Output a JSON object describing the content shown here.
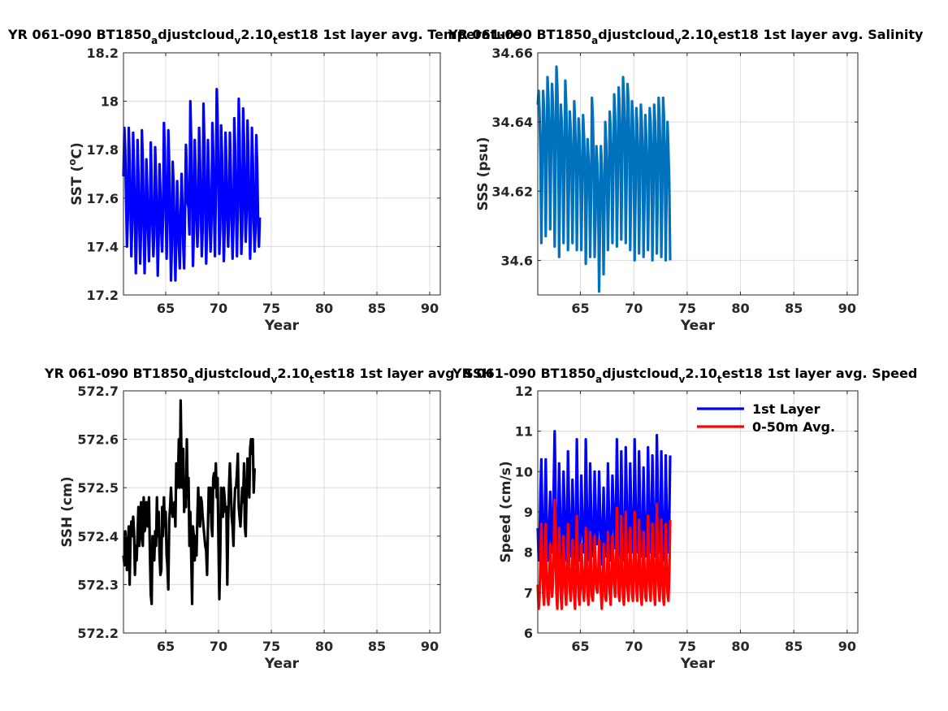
{
  "chart_data": [
    {
      "type": "line",
      "title": "YR 061-090 BT1850_adjustcloud_v2.10_test18 1st layer avg. Temperature",
      "title_parts": [
        "YR 061-090 BT1850",
        "a",
        "djustcloud",
        "v",
        "2.10",
        "t",
        "est18 1st layer avg. Temperature"
      ],
      "xlabel": "Year",
      "ylabel": "SST (",
      "ylabel_sup": "o",
      "ylabel_tail": "C)",
      "xlim": [
        61,
        91
      ],
      "ylim": [
        17.2,
        18.2
      ],
      "xticks": [
        65,
        70,
        75,
        80,
        85,
        90
      ],
      "xtick_labels": [
        "65",
        "70",
        "75",
        "80",
        "85",
        "90"
      ],
      "yticks": [
        17.2,
        17.4,
        17.6,
        17.8,
        18.0,
        18.2
      ],
      "ytick_labels": [
        "17.2",
        "17.4",
        "17.6",
        "17.8",
        "18",
        "18.2"
      ],
      "grid": true,
      "series": [
        {
          "color": "#0000ff",
          "start": 61.0,
          "step": 0.0833,
          "values": [
            17.69,
            17.89,
            17.79,
            17.6,
            17.4,
            17.52,
            17.89,
            17.76,
            17.55,
            17.36,
            17.5,
            17.87,
            17.73,
            17.51,
            17.29,
            17.45,
            17.84,
            17.7,
            17.49,
            17.33,
            17.48,
            17.88,
            17.75,
            17.5,
            17.29,
            17.47,
            17.76,
            17.65,
            17.47,
            17.34,
            17.5,
            17.83,
            17.67,
            17.48,
            17.36,
            17.45,
            17.81,
            17.68,
            17.5,
            17.28,
            17.44,
            17.74,
            17.62,
            17.46,
            17.38,
            17.52,
            17.91,
            17.8,
            17.56,
            17.35,
            17.5,
            17.88,
            17.74,
            17.5,
            17.26,
            17.41,
            17.75,
            17.65,
            17.46,
            17.26,
            17.43,
            17.67,
            17.55,
            17.41,
            17.31,
            17.52,
            17.7,
            17.57,
            17.4,
            17.31,
            17.55,
            17.82,
            17.7,
            17.58,
            17.56,
            17.45,
            18.0,
            17.83,
            17.6,
            17.32,
            17.45,
            17.84,
            17.72,
            17.52,
            17.4,
            17.49,
            17.89,
            17.75,
            17.55,
            17.36,
            17.47,
            17.99,
            17.82,
            17.58,
            17.33,
            17.47,
            17.84,
            17.7,
            17.52,
            17.38,
            17.5,
            17.91,
            17.79,
            17.55,
            17.36,
            17.62,
            18.05,
            17.92,
            17.65,
            17.37,
            17.48,
            17.9,
            17.78,
            17.54,
            17.34,
            17.46,
            17.87,
            17.75,
            17.52,
            17.4,
            17.52,
            17.87,
            17.71,
            17.51,
            17.35,
            17.5,
            17.93,
            17.8,
            17.56,
            17.36,
            17.55,
            18.01,
            17.86,
            17.6,
            17.37,
            17.48,
            17.97,
            17.84,
            17.58,
            17.42,
            17.55,
            17.92,
            17.77,
            17.53,
            17.35,
            17.5,
            17.89,
            17.76,
            17.52,
            17.38,
            17.46,
            17.86,
            17.74,
            17.5,
            17.4,
            17.52
          ]
        }
      ]
    },
    {
      "type": "line",
      "title": "YR 061-090 BT1850_adjustcloud_v2.10_test18 1st layer avg. Salinity",
      "title_parts": [
        "YR 061-090 BT1850",
        "a",
        "djustcloud",
        "v",
        "2.10",
        "t",
        "est18 1st layer avg. Salinity"
      ],
      "xlabel": "Year",
      "ylabel": "SSS (psu)",
      "xlim": [
        61,
        91
      ],
      "ylim": [
        34.59,
        34.66
      ],
      "xticks": [
        65,
        70,
        75,
        80,
        85,
        90
      ],
      "xtick_labels": [
        "65",
        "70",
        "75",
        "80",
        "85",
        "90"
      ],
      "yticks": [
        34.6,
        34.62,
        34.64,
        34.66
      ],
      "ytick_labels": [
        "34.6",
        "34.62",
        "34.64",
        "34.66"
      ],
      "grid": true,
      "series": [
        {
          "color": "#0072bd",
          "start": 61.0,
          "step": 0.0833,
          "values": [
            34.645,
            34.649,
            34.643,
            34.63,
            34.605,
            34.625,
            34.649,
            34.644,
            34.633,
            34.607,
            34.627,
            34.653,
            34.647,
            34.635,
            34.609,
            34.63,
            34.651,
            34.646,
            34.634,
            34.604,
            34.628,
            34.656,
            34.65,
            34.636,
            34.601,
            34.622,
            34.645,
            34.64,
            34.63,
            34.605,
            34.625,
            34.652,
            34.645,
            34.633,
            34.603,
            34.62,
            34.643,
            34.638,
            34.628,
            34.605,
            34.624,
            34.646,
            34.64,
            34.63,
            34.603,
            34.624,
            34.641,
            34.636,
            34.625,
            34.603,
            34.62,
            34.642,
            34.636,
            34.628,
            34.599,
            34.617,
            34.635,
            34.63,
            34.622,
            34.601,
            34.618,
            34.647,
            34.641,
            34.628,
            34.601,
            34.612,
            34.633,
            34.628,
            34.618,
            34.591,
            34.61,
            34.633,
            34.628,
            34.618,
            34.596,
            34.615,
            34.64,
            34.634,
            34.623,
            34.603,
            34.62,
            34.643,
            34.638,
            34.628,
            34.605,
            34.624,
            34.648,
            34.642,
            34.632,
            34.604,
            34.622,
            34.65,
            34.645,
            34.635,
            34.606,
            34.626,
            34.653,
            34.647,
            34.636,
            34.605,
            34.624,
            34.651,
            34.646,
            34.634,
            34.603,
            34.62,
            34.646,
            34.641,
            34.63,
            34.6,
            34.618,
            34.644,
            34.639,
            34.629,
            34.602,
            34.62,
            34.645,
            34.64,
            34.63,
            34.601,
            34.616,
            34.642,
            34.636,
            34.626,
            34.603,
            34.62,
            34.644,
            34.64,
            34.63,
            34.6,
            34.617,
            34.645,
            34.64,
            34.628,
            34.602,
            34.62,
            34.647,
            34.641,
            34.63,
            34.601,
            34.618,
            34.647,
            34.642,
            34.63,
            34.6,
            34.62,
            34.64,
            34.632,
            34.622,
            34.6
          ]
        }
      ]
    },
    {
      "type": "line",
      "title": "YR 061-090 BT1850_adjustcloud_v2.10_test18 1st layer avg. SSH",
      "title_parts": [
        "YR 061-090 BT1850",
        "a",
        "djustcloud",
        "v",
        "2.10",
        "t",
        "est18 1st layer avg. SSH"
      ],
      "xlabel": "Year",
      "ylabel": "SSH (cm)",
      "xlim": [
        61,
        91
      ],
      "ylim": [
        572.2,
        572.7
      ],
      "xticks": [
        65,
        70,
        75,
        80,
        85,
        90
      ],
      "xtick_labels": [
        "65",
        "70",
        "75",
        "80",
        "85",
        "90"
      ],
      "yticks": [
        572.2,
        572.3,
        572.4,
        572.5,
        572.6,
        572.7
      ],
      "ytick_labels": [
        "572.2",
        "572.3",
        "572.4",
        "572.5",
        "572.6",
        "572.7"
      ],
      "grid": true,
      "series": [
        {
          "color": "#000000",
          "start": 61.0,
          "step": 0.0833,
          "values": [
            572.36,
            572.34,
            572.41,
            572.38,
            572.33,
            572.38,
            572.42,
            572.3,
            572.4,
            572.43,
            572.4,
            572.44,
            572.41,
            572.32,
            572.38,
            572.35,
            572.4,
            572.46,
            572.38,
            572.42,
            572.47,
            572.4,
            572.38,
            572.48,
            572.41,
            572.42,
            572.47,
            572.43,
            572.42,
            572.48,
            572.37,
            572.28,
            572.26,
            572.4,
            572.37,
            572.35,
            572.41,
            572.38,
            572.48,
            572.4,
            572.45,
            572.36,
            572.32,
            572.33,
            572.46,
            572.4,
            572.48,
            572.42,
            572.45,
            572.36,
            572.34,
            572.29,
            572.43,
            572.46,
            572.5,
            572.46,
            572.44,
            572.46,
            572.47,
            572.42,
            572.55,
            572.5,
            572.52,
            572.6,
            572.5,
            572.68,
            572.55,
            572.5,
            572.58,
            572.45,
            572.5,
            572.46,
            572.6,
            572.48,
            572.52,
            572.38,
            572.45,
            572.36,
            572.26,
            572.42,
            572.4,
            572.35,
            572.4,
            572.36,
            572.44,
            572.5,
            572.44,
            572.42,
            572.48,
            572.47,
            572.44,
            572.42,
            572.4,
            572.38,
            572.37,
            572.32,
            572.42,
            572.5,
            572.45,
            572.5,
            572.42,
            572.4,
            572.52,
            572.53,
            572.5,
            572.55,
            572.48,
            572.52,
            572.38,
            572.27,
            572.36,
            572.5,
            572.48,
            572.44,
            572.5,
            572.48,
            572.45,
            572.46,
            572.3,
            572.43,
            572.5,
            572.55,
            572.5,
            572.44,
            572.42,
            572.38,
            572.46,
            572.5,
            572.5,
            572.53,
            572.57,
            572.46,
            572.44,
            572.42,
            572.46,
            572.5,
            572.47,
            572.55,
            572.42,
            572.4,
            572.5,
            572.56,
            572.5,
            572.48,
            572.58,
            572.6,
            572.57,
            572.6,
            572.49,
            572.54
          ]
        }
      ]
    },
    {
      "type": "line",
      "title": "YR 061-090 BT1850_adjustcloud_v2.10_test18 1st layer avg. Speed",
      "title_parts": [
        "YR 061-090 BT1850",
        "a",
        "djustcloud",
        "v",
        "2.10",
        "t",
        "est18 1st layer avg. Speed"
      ],
      "xlabel": "Year",
      "ylabel": "Speed (cm/s)",
      "xlim": [
        61,
        91
      ],
      "ylim": [
        6,
        12
      ],
      "xticks": [
        65,
        70,
        75,
        80,
        85,
        90
      ],
      "xtick_labels": [
        "65",
        "70",
        "75",
        "80",
        "85",
        "90"
      ],
      "yticks": [
        6,
        7,
        8,
        9,
        10,
        11,
        12
      ],
      "ytick_labels": [
        "6",
        "7",
        "8",
        "9",
        "10",
        "11",
        "12"
      ],
      "grid": true,
      "legend_position": "top-right",
      "series": [
        {
          "name": "1st Layer",
          "color": "#0000ff",
          "start": 61.0,
          "step": 0.0833,
          "values": [
            8.6,
            7.8,
            8.2,
            9.5,
            10.3,
            9.0,
            8.2,
            7.7,
            9.0,
            10.3,
            9.0,
            8.0,
            7.8,
            8.7,
            9.5,
            8.6,
            8.0,
            8.6,
            9.7,
            11.0,
            9.4,
            8.2,
            7.8,
            8.8,
            10.2,
            9.2,
            8.1,
            7.6,
            8.5,
            10.0,
            9.3,
            8.2,
            7.8,
            8.7,
            10.5,
            9.4,
            8.3,
            7.9,
            8.5,
            9.8,
            9.0,
            8.1,
            7.7,
            8.9,
            10.8,
            9.3,
            8.0,
            7.8,
            8.4,
            9.9,
            9.1,
            8.4,
            8.0,
            8.7,
            10.8,
            9.5,
            8.2,
            7.8,
            8.5,
            10.2,
            9.1,
            8.0,
            7.9,
            8.6,
            10.0,
            9.2,
            8.3,
            8.2,
            8.7,
            10.0,
            9.1,
            8.2,
            7.7,
            8.5,
            9.6,
            8.8,
            8.1,
            7.9,
            8.6,
            10.2,
            9.1,
            8.2,
            7.8,
            8.6,
            9.9,
            9.3,
            8.5,
            8.1,
            9.0,
            10.8,
            9.5,
            8.2,
            7.9,
            8.6,
            10.5,
            9.2,
            8.1,
            7.8,
            8.5,
            10.6,
            9.5,
            8.3,
            8.0,
            8.7,
            10.2,
            9.2,
            8.2,
            8.0,
            8.9,
            10.8,
            9.5,
            8.3,
            8.0,
            8.7,
            10.5,
            9.3,
            8.1,
            7.9,
            8.7,
            10.1,
            9.0,
            8.1,
            7.9,
            8.8,
            10.6,
            9.5,
            8.3,
            8.0,
            8.7,
            10.4,
            9.3,
            8.2,
            7.9,
            8.8,
            10.9,
            9.6,
            8.3,
            8.0,
            8.7,
            10.5,
            9.2,
            8.1,
            7.8,
            8.6,
            10.4,
            9.2,
            8.2,
            8.0,
            8.8,
            10.4
          ]
        },
        {
          "name": "0-50m Avg.",
          "color": "#ff0000",
          "start": 61.0,
          "step": 0.0833,
          "values": [
            7.2,
            6.6,
            6.9,
            7.8,
            8.7,
            7.7,
            7.0,
            6.7,
            7.6,
            8.7,
            7.6,
            6.9,
            6.7,
            7.3,
            8.2,
            7.4,
            6.9,
            7.2,
            8.1,
            9.3,
            8.0,
            7.0,
            6.6,
            7.5,
            8.6,
            7.8,
            6.9,
            6.6,
            7.3,
            8.4,
            7.8,
            7.0,
            6.7,
            7.4,
            8.7,
            7.9,
            7.1,
            6.8,
            7.2,
            8.3,
            7.6,
            6.9,
            6.6,
            7.5,
            8.9,
            7.8,
            6.9,
            6.7,
            7.1,
            8.2,
            7.7,
            7.1,
            6.8,
            7.3,
            8.6,
            7.9,
            7.0,
            6.7,
            7.2,
            8.5,
            7.7,
            6.9,
            6.8,
            7.3,
            8.4,
            7.8,
            7.1,
            7.0,
            7.4,
            8.3,
            7.7,
            7.0,
            6.6,
            7.2,
            8.2,
            7.5,
            6.9,
            6.8,
            7.3,
            8.5,
            7.7,
            7.0,
            6.7,
            7.3,
            8.4,
            7.9,
            7.2,
            6.9,
            7.6,
            9.1,
            8.0,
            7.0,
            6.8,
            7.3,
            8.9,
            7.8,
            6.9,
            6.7,
            7.2,
            9.0,
            8.0,
            7.1,
            6.8,
            7.4,
            8.6,
            7.8,
            7.0,
            6.8,
            7.5,
            9.0,
            8.0,
            7.1,
            6.8,
            7.4,
            8.8,
            7.9,
            6.9,
            6.7,
            7.3,
            8.5,
            7.7,
            6.9,
            6.8,
            7.4,
            8.9,
            8.0,
            7.1,
            6.8,
            7.4,
            8.7,
            7.9,
            7.0,
            6.7,
            7.4,
            9.2,
            8.1,
            7.1,
            6.8,
            7.3,
            8.8,
            7.8,
            6.9,
            6.7,
            7.3,
            8.7,
            7.8,
            7.0,
            6.8,
            7.4,
            8.8
          ]
        }
      ]
    }
  ]
}
